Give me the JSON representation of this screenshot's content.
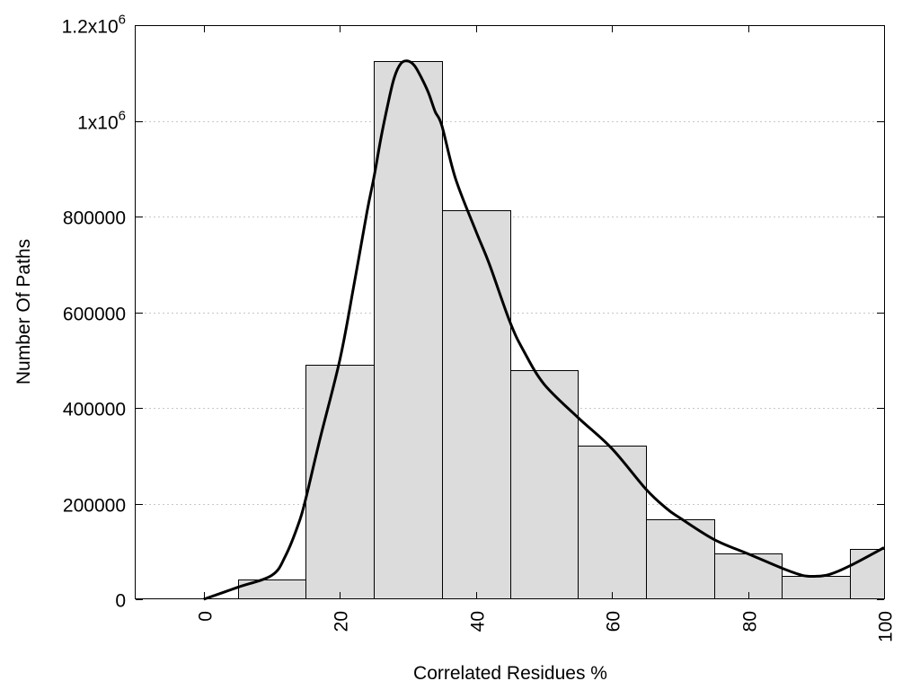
{
  "chart_data": {
    "type": "bar",
    "xlabel": "Correlated Residues %",
    "ylabel": "Number Of Paths",
    "xlim": [
      -10,
      100
    ],
    "ylim": [
      0,
      1200000
    ],
    "grid": true,
    "x_ticks": [
      {
        "value": 0,
        "label": "0"
      },
      {
        "value": 20,
        "label": "20"
      },
      {
        "value": 40,
        "label": "40"
      },
      {
        "value": 60,
        "label": "60"
      },
      {
        "value": 80,
        "label": "80"
      },
      {
        "value": 100,
        "label": "100"
      }
    ],
    "y_ticks": [
      {
        "value": 0,
        "base": "0",
        "exp": ""
      },
      {
        "value": 200000,
        "base": "200000",
        "exp": ""
      },
      {
        "value": 400000,
        "base": "400000",
        "exp": ""
      },
      {
        "value": 600000,
        "base": "600000",
        "exp": ""
      },
      {
        "value": 800000,
        "base": "800000",
        "exp": ""
      },
      {
        "value": 1000000,
        "base": "1x10",
        "exp": "6"
      },
      {
        "value": 1200000,
        "base": "1.2x10",
        "exp": "6"
      }
    ],
    "bins": [
      {
        "x0": -5,
        "x1": 5,
        "value": 2000
      },
      {
        "x0": 5,
        "x1": 15,
        "value": 42000
      },
      {
        "x0": 15,
        "x1": 25,
        "value": 490000
      },
      {
        "x0": 25,
        "x1": 35,
        "value": 1125000
      },
      {
        "x0": 35,
        "x1": 45,
        "value": 813000
      },
      {
        "x0": 45,
        "x1": 55,
        "value": 478000
      },
      {
        "x0": 55,
        "x1": 65,
        "value": 321000
      },
      {
        "x0": 65,
        "x1": 75,
        "value": 168000
      },
      {
        "x0": 75,
        "x1": 85,
        "value": 95000
      },
      {
        "x0": 85,
        "x1": 95,
        "value": 48000
      },
      {
        "x0": 95,
        "x1": 105,
        "value": 106000
      }
    ],
    "curve": {
      "type": "line",
      "x": [
        0,
        5,
        10,
        12,
        14,
        15,
        17,
        20,
        22,
        24,
        25,
        26,
        27,
        28,
        29,
        30,
        31,
        32,
        33,
        34,
        35,
        37,
        40,
        42,
        45,
        47,
        50,
        55,
        60,
        65,
        68,
        70,
        75,
        80,
        85,
        88,
        90,
        92,
        95,
        100
      ],
      "y": [
        0,
        25000,
        50000,
        90000,
        160000,
        210000,
        330000,
        500000,
        650000,
        810000,
        880000,
        960000,
        1030000,
        1090000,
        1120000,
        1125000,
        1115000,
        1090000,
        1060000,
        1020000,
        990000,
        880000,
        770000,
        700000,
        580000,
        520000,
        450000,
        380000,
        315000,
        230000,
        190000,
        170000,
        125000,
        95000,
        65000,
        50000,
        48000,
        52000,
        70000,
        108000
      ]
    }
  }
}
